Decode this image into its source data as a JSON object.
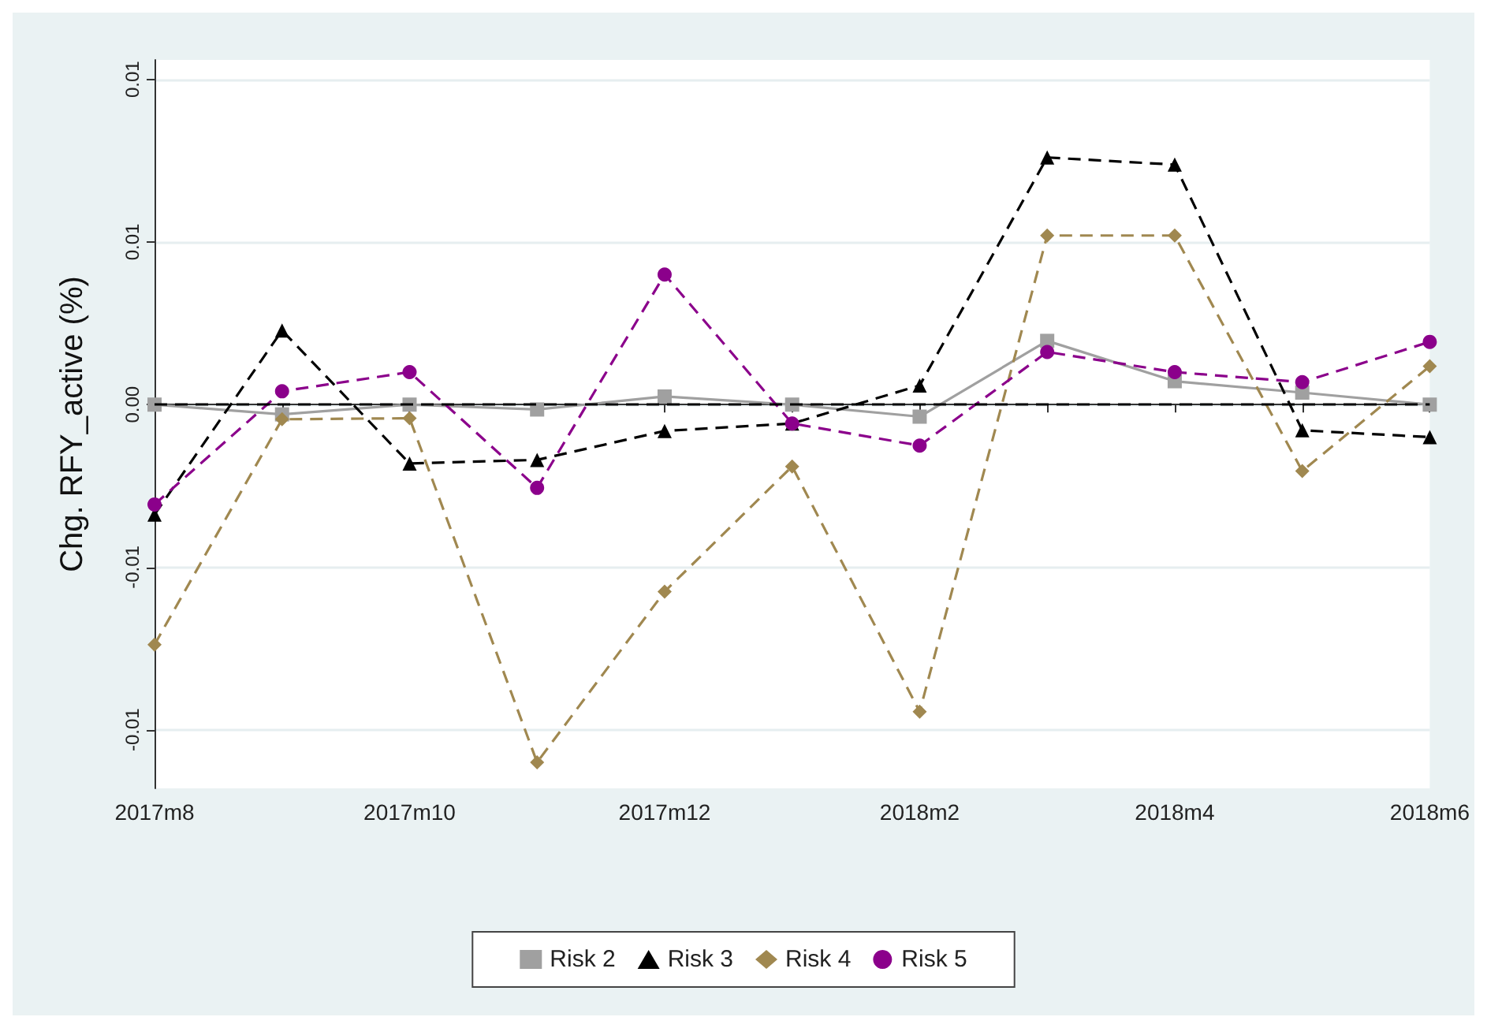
{
  "chart_data": {
    "type": "line",
    "ylabel": "Chg. RFY_active (%)",
    "categories": [
      "2017m8",
      null,
      "2017m10",
      null,
      "2017m12",
      null,
      "2018m2",
      null,
      "2018m4",
      null,
      "2018m6"
    ],
    "series": [
      {
        "name": "Risk 2",
        "color": "#a0a0a0",
        "marker": "square",
        "line_style": "solid",
        "values": [
          0,
          -0.0003,
          0,
          -0.00015,
          0.00025,
          0,
          -0.00037,
          0.00196,
          0.00072,
          0.00037,
          0
        ]
      },
      {
        "name": "Risk 3",
        "color": "#000000",
        "marker": "triangle",
        "line_style": "dashed",
        "values": [
          -0.00338,
          0.00228,
          -0.00181,
          -0.0017,
          -0.00081,
          -0.00058,
          0.00059,
          0.0076,
          0.00738,
          -0.00079,
          -0.001
        ]
      },
      {
        "name": "Risk 4",
        "color": "#a08850",
        "marker": "diamond",
        "line_style": "dashed",
        "values": [
          -0.00738,
          -0.00045,
          -0.00042,
          -0.011,
          -0.00575,
          -0.0019,
          -0.00944,
          0.0052,
          0.0052,
          -0.00204,
          0.00118
        ]
      },
      {
        "name": "Risk 5",
        "color": "#8b008b",
        "marker": "circle",
        "line_style": "dashed",
        "values": [
          -0.00307,
          0.00041,
          0.001,
          -0.00256,
          0.004,
          -0.00058,
          -0.00126,
          0.00162,
          0.001,
          0.00069,
          0.00193
        ]
      }
    ],
    "ylim": [
      -0.0118,
      0.0106
    ],
    "yticks": [
      {
        "value": -0.01,
        "label": "-0.01"
      },
      {
        "value": -0.005,
        "label": "-0.01"
      },
      {
        "value": 0,
        "label": "0.00"
      },
      {
        "value": 0.005,
        "label": "0.01"
      },
      {
        "value": 0.01,
        "label": "0.01"
      }
    ],
    "ref_lines": [
      {
        "axis": "y",
        "value": 0,
        "color": "#000000",
        "line_style": "dashed"
      }
    ],
    "grid": "y",
    "legend": "bottom"
  }
}
